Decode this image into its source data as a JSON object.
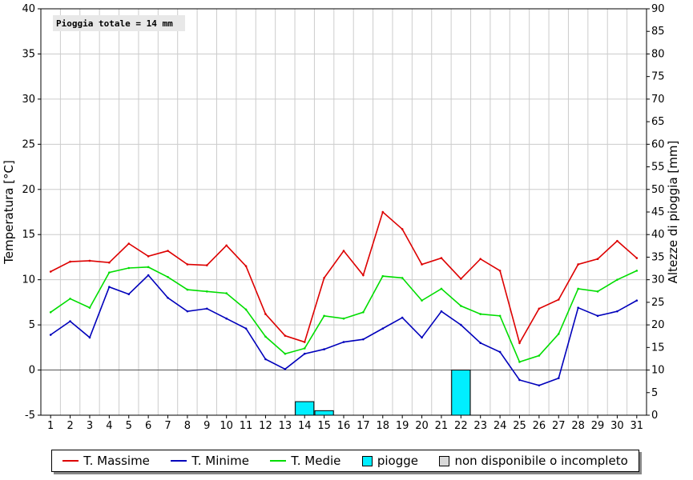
{
  "chart_data": {
    "type": "line",
    "annotation": "Pioggia totale = 14 mm",
    "ylabel_left": "Temperatura [°C]",
    "ylabel_right": "Altezze di pioggia [mm]",
    "ylim_left": [
      -5,
      40
    ],
    "ylim_right": [
      0,
      90
    ],
    "yticks_left": [
      -5,
      0,
      5,
      10,
      15,
      20,
      25,
      30,
      35,
      40
    ],
    "yticks_right": [
      0,
      5,
      10,
      15,
      20,
      25,
      30,
      35,
      40,
      45,
      50,
      55,
      60,
      65,
      70,
      75,
      80,
      85,
      90
    ],
    "grid": true,
    "x": [
      1,
      2,
      3,
      4,
      5,
      6,
      7,
      8,
      9,
      10,
      11,
      12,
      13,
      14,
      15,
      16,
      17,
      18,
      19,
      20,
      21,
      22,
      23,
      24,
      25,
      26,
      27,
      28,
      29,
      30,
      31
    ],
    "series": [
      {
        "name": "T. Massime",
        "color": "#dd0000",
        "values": [
          10.9,
          12.0,
          12.1,
          11.9,
          14.0,
          12.6,
          13.2,
          11.7,
          11.6,
          13.8,
          11.5,
          6.2,
          3.8,
          3.1,
          10.2,
          13.2,
          10.5,
          17.5,
          15.6,
          11.7,
          12.4,
          10.1,
          12.3,
          11.0,
          3.0,
          6.8,
          7.8,
          11.7,
          12.3,
          14.3,
          12.4
        ]
      },
      {
        "name": "T. Minime",
        "color": "#0000bb",
        "values": [
          3.9,
          5.4,
          3.6,
          9.2,
          8.4,
          10.5,
          8.0,
          6.5,
          6.8,
          5.7,
          4.6,
          1.2,
          0.1,
          1.8,
          2.3,
          3.1,
          3.4,
          4.6,
          5.8,
          3.6,
          6.5,
          5.0,
          3.0,
          2.0,
          -1.1,
          -1.7,
          -0.9,
          6.9,
          6.0,
          6.5,
          7.7
        ]
      },
      {
        "name": "T. Medie",
        "color": "#00dd00",
        "values": [
          6.4,
          7.9,
          6.9,
          10.8,
          11.3,
          11.4,
          10.3,
          8.9,
          8.7,
          8.5,
          6.7,
          3.7,
          1.8,
          2.4,
          6.0,
          5.7,
          6.4,
          10.4,
          10.2,
          7.7,
          9.0,
          7.1,
          6.2,
          6.0,
          0.9,
          1.6,
          4.0,
          9.0,
          8.7,
          10.0,
          11.0
        ]
      }
    ],
    "rain": {
      "name": "piogge",
      "color": "#00eeff",
      "days": [
        14,
        15,
        22
      ],
      "values": [
        3,
        1,
        10
      ]
    },
    "legend": {
      "placement": "bottom",
      "items": [
        {
          "label": "T. Massime",
          "kind": "line",
          "color": "#dd0000"
        },
        {
          "label": "T. Minime",
          "kind": "line",
          "color": "#0000bb"
        },
        {
          "label": "T. Medie",
          "kind": "line",
          "color": "#00dd00"
        },
        {
          "label": "piogge",
          "kind": "box",
          "color": "#00eeff"
        },
        {
          "label": "non disponibile o incompleto",
          "kind": "box",
          "color": "#d8d8d8"
        }
      ]
    }
  }
}
